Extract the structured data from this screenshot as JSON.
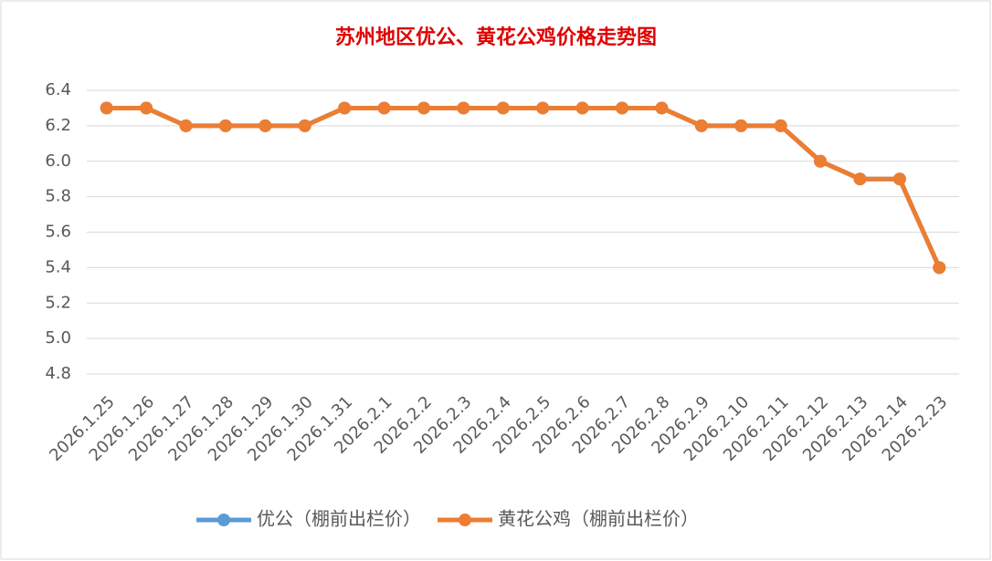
{
  "chart_data": {
    "type": "line",
    "title": "苏州地区优公、黄花公鸡价格走势图",
    "categories": [
      "2026.1.25",
      "2026.1.26",
      "2026.1.27",
      "2026.1.28",
      "2026.1.29",
      "2026.1.30",
      "2026.1.31",
      "2026.2.1",
      "2026.2.2",
      "2026.2.3",
      "2026.2.4",
      "2026.2.5",
      "2026.2.6",
      "2026.2.7",
      "2026.2.8",
      "2026.2.9",
      "2026.2.10",
      "2026.2.11",
      "2026.2.12",
      "2026.2.13",
      "2026.2.14",
      "2026.2.23"
    ],
    "series": [
      {
        "name": "优公（棚前出栏价）",
        "color": "#5b9bd5",
        "values": [
          6.3,
          6.3,
          6.2,
          6.2,
          6.2,
          6.2,
          6.3,
          6.3,
          6.3,
          6.3,
          6.3,
          6.3,
          6.3,
          6.3,
          6.3,
          6.2,
          6.2,
          6.2,
          6.0,
          5.9,
          5.9,
          5.4
        ]
      },
      {
        "name": "黄花公鸡（棚前出栏价）",
        "color": "#ed7d31",
        "values": [
          6.3,
          6.3,
          6.2,
          6.2,
          6.2,
          6.2,
          6.3,
          6.3,
          6.3,
          6.3,
          6.3,
          6.3,
          6.3,
          6.3,
          6.3,
          6.2,
          6.2,
          6.2,
          6.0,
          5.9,
          5.9,
          5.4
        ]
      }
    ],
    "ylim": [
      4.8,
      6.4
    ],
    "yticks": [
      4.8,
      {
        "value": 5,
        "label": "5.0"
      },
      5.2,
      5.4,
      5.6,
      5.8,
      {
        "value": 6,
        "label": "6.0"
      },
      6.2,
      6.4
    ],
    "grid": true,
    "legend": "bottom"
  }
}
